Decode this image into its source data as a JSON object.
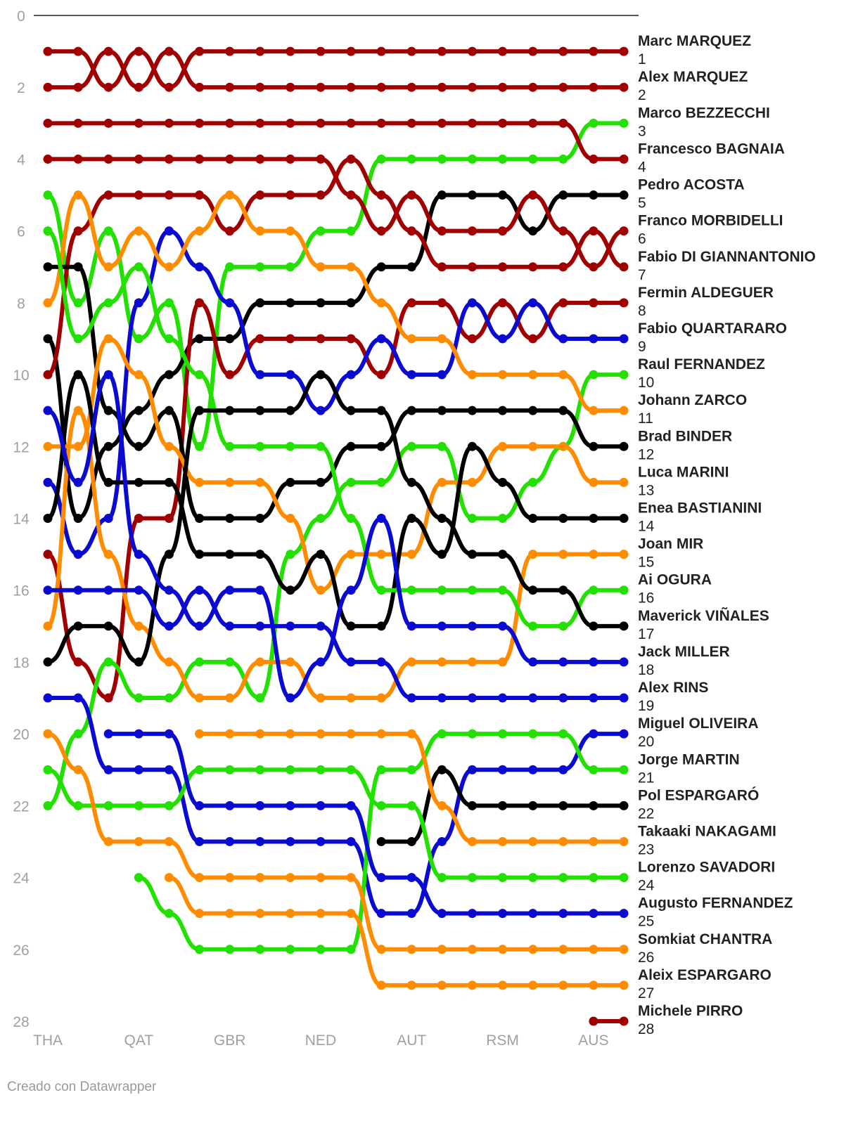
{
  "chart_data": {
    "type": "bump",
    "categories": [
      "THA",
      null,
      null,
      "QAT",
      null,
      null,
      "GBR",
      null,
      null,
      "NED",
      null,
      null,
      "AUT",
      null,
      null,
      "RSM",
      null,
      null,
      "AUS",
      null
    ],
    "ylim": [
      0,
      28
    ],
    "y_reversed": true,
    "yticks": [
      0,
      2,
      4,
      6,
      8,
      10,
      12,
      14,
      16,
      18,
      20,
      22,
      24,
      26,
      28
    ],
    "credit": "Creado con Datawrapper",
    "series": [
      {
        "name": "Marc MARQUEZ",
        "color": "#a10000",
        "values": [
          1,
          1,
          2,
          1,
          2,
          1,
          1,
          1,
          1,
          1,
          1,
          1,
          1,
          1,
          1,
          1,
          1,
          1,
          1,
          1
        ]
      },
      {
        "name": "Alex MARQUEZ",
        "color": "#a10000",
        "values": [
          2,
          2,
          1,
          2,
          1,
          2,
          2,
          2,
          2,
          2,
          2,
          2,
          2,
          2,
          2,
          2,
          2,
          2,
          2,
          2
        ]
      },
      {
        "name": "Marco BEZZECCHI",
        "color": "#22e000",
        "values": [
          5,
          8,
          6,
          9,
          8,
          12,
          7,
          7,
          7,
          6,
          6,
          4,
          4,
          4,
          4,
          4,
          4,
          4,
          3,
          3
        ]
      },
      {
        "name": "Francesco BAGNAIA",
        "color": "#a10000",
        "values": [
          3,
          3,
          3,
          3,
          3,
          3,
          3,
          3,
          3,
          3,
          3,
          3,
          3,
          3,
          3,
          3,
          3,
          3,
          4,
          4
        ]
      },
      {
        "name": "Pedro ACOSTA",
        "color": "#000000",
        "values": [
          9,
          14,
          12,
          11,
          10,
          9,
          9,
          8,
          8,
          8,
          8,
          7,
          7,
          5,
          5,
          5,
          6,
          5,
          5,
          5
        ]
      },
      {
        "name": "Franco MORBIDELLI",
        "color": "#a10000",
        "values": [
          4,
          4,
          4,
          4,
          4,
          4,
          4,
          4,
          4,
          4,
          5,
          6,
          5,
          6,
          6,
          6,
          5,
          6,
          7,
          6
        ]
      },
      {
        "name": "Fabio DI GIANNANTONIO",
        "color": "#a10000",
        "values": [
          10,
          6,
          5,
          5,
          5,
          5,
          6,
          5,
          5,
          5,
          4,
          5,
          6,
          7,
          7,
          7,
          7,
          7,
          6,
          7
        ]
      },
      {
        "name": "Fermin ALDEGUER",
        "color": "#a10000",
        "values": [
          15,
          18,
          19,
          14,
          14,
          8,
          10,
          9,
          9,
          9,
          9,
          10,
          8,
          8,
          9,
          8,
          9,
          8,
          8,
          8
        ]
      },
      {
        "name": "Fabio QUARTARARO",
        "color": "#0a0ad0",
        "values": [
          13,
          15,
          14,
          8,
          6,
          7,
          8,
          10,
          10,
          11,
          10,
          9,
          10,
          10,
          8,
          9,
          8,
          9,
          9,
          9
        ]
      },
      {
        "name": "Raul FERNANDEZ",
        "color": "#22e000",
        "values": [
          22,
          20,
          18,
          19,
          19,
          18,
          18,
          19,
          15,
          14,
          13,
          13,
          12,
          12,
          14,
          14,
          13,
          12,
          10,
          10
        ]
      },
      {
        "name": "Johann ZARCO",
        "color": "#ff8c00",
        "values": [
          8,
          5,
          7,
          6,
          7,
          6,
          5,
          6,
          6,
          7,
          7,
          8,
          9,
          9,
          10,
          10,
          10,
          10,
          11,
          11
        ]
      },
      {
        "name": "Brad BINDER",
        "color": "#000000",
        "values": [
          7,
          7,
          11,
          12,
          11,
          14,
          14,
          14,
          13,
          13,
          12,
          12,
          11,
          11,
          11,
          11,
          11,
          11,
          12,
          12
        ]
      },
      {
        "name": "Luca MARINI",
        "color": "#ff8c00",
        "values": [
          12,
          12,
          9,
          10,
          12,
          13,
          13,
          13,
          14,
          16,
          15,
          15,
          15,
          13,
          13,
          12,
          12,
          12,
          13,
          13
        ]
      },
      {
        "name": "Enea BASTIANINI",
        "color": "#000000",
        "values": [
          14,
          10,
          13,
          13,
          13,
          15,
          15,
          15,
          16,
          15,
          17,
          17,
          14,
          15,
          12,
          13,
          14,
          14,
          14,
          14
        ]
      },
      {
        "name": "Joan MIR",
        "color": "#ff8c00",
        "values": [
          17,
          11,
          15,
          17,
          18,
          19,
          19,
          18,
          18,
          19,
          19,
          19,
          18,
          18,
          18,
          18,
          15,
          15,
          15,
          15
        ]
      },
      {
        "name": "Ai OGURA",
        "color": "#22e000",
        "values": [
          6,
          9,
          8,
          7,
          9,
          10,
          12,
          12,
          12,
          12,
          14,
          16,
          16,
          16,
          16,
          16,
          17,
          17,
          16,
          16
        ]
      },
      {
        "name": "Maverick VIÑALES",
        "color": "#000000",
        "values": [
          18,
          17,
          17,
          18,
          15,
          11,
          11,
          11,
          11,
          10,
          11,
          11,
          13,
          14,
          15,
          15,
          16,
          16,
          17,
          17
        ]
      },
      {
        "name": "Jack MILLER",
        "color": "#0a0ad0",
        "values": [
          11,
          13,
          10,
          15,
          16,
          17,
          16,
          16,
          19,
          18,
          16,
          14,
          17,
          17,
          17,
          17,
          18,
          18,
          18,
          18
        ]
      },
      {
        "name": "Alex RINS",
        "color": "#0a0ad0",
        "values": [
          16,
          16,
          16,
          16,
          17,
          16,
          17,
          17,
          17,
          17,
          18,
          18,
          19,
          19,
          19,
          19,
          19,
          19,
          19,
          19
        ]
      },
      {
        "name": "Miguel OLIVEIRA",
        "color": "#0a0ad0",
        "values": [
          19,
          19,
          21,
          21,
          21,
          23,
          23,
          23,
          23,
          23,
          23,
          25,
          25,
          23,
          21,
          21,
          21,
          21,
          20,
          20
        ]
      },
      {
        "name": "Jorge MARTIN",
        "color": "#22e000",
        "values": [
          null,
          null,
          null,
          24,
          25,
          26,
          26,
          26,
          26,
          26,
          26,
          21,
          21,
          20,
          20,
          20,
          20,
          20,
          21,
          21
        ]
      },
      {
        "name": "Pol ESPARGARÓ",
        "color": "#000000",
        "values": [
          null,
          null,
          null,
          null,
          null,
          null,
          null,
          null,
          null,
          null,
          null,
          23,
          23,
          21,
          22,
          22,
          22,
          22,
          22,
          22
        ]
      },
      {
        "name": "Takaaki NAKAGAMI",
        "color": "#ff8c00",
        "values": [
          null,
          null,
          null,
          null,
          null,
          20,
          20,
          20,
          20,
          20,
          20,
          20,
          20,
          22,
          23,
          23,
          23,
          23,
          23,
          23
        ]
      },
      {
        "name": "Lorenzo SAVADORI",
        "color": "#22e000",
        "values": [
          21,
          22,
          22,
          22,
          22,
          21,
          21,
          21,
          21,
          21,
          21,
          22,
          22,
          24,
          24,
          24,
          24,
          24,
          24,
          24
        ]
      },
      {
        "name": "Augusto FERNANDEZ",
        "color": "#0a0ad0",
        "values": [
          null,
          null,
          20,
          20,
          20,
          22,
          22,
          22,
          22,
          22,
          22,
          24,
          24,
          25,
          25,
          25,
          25,
          25,
          25,
          25
        ]
      },
      {
        "name": "Somkiat CHANTRA",
        "color": "#ff8c00",
        "values": [
          20,
          21,
          23,
          23,
          23,
          24,
          24,
          24,
          24,
          24,
          24,
          26,
          26,
          26,
          26,
          26,
          26,
          26,
          26,
          26
        ]
      },
      {
        "name": "Aleix ESPARGARO",
        "color": "#ff8c00",
        "values": [
          null,
          null,
          null,
          null,
          24,
          25,
          25,
          25,
          25,
          25,
          25,
          27,
          27,
          27,
          27,
          27,
          27,
          27,
          27,
          27
        ]
      },
      {
        "name": "Michele PIRRO",
        "color": "#a10000",
        "values": [
          null,
          null,
          null,
          null,
          null,
          null,
          null,
          null,
          null,
          null,
          null,
          null,
          null,
          null,
          null,
          null,
          null,
          null,
          28,
          28
        ]
      }
    ]
  }
}
